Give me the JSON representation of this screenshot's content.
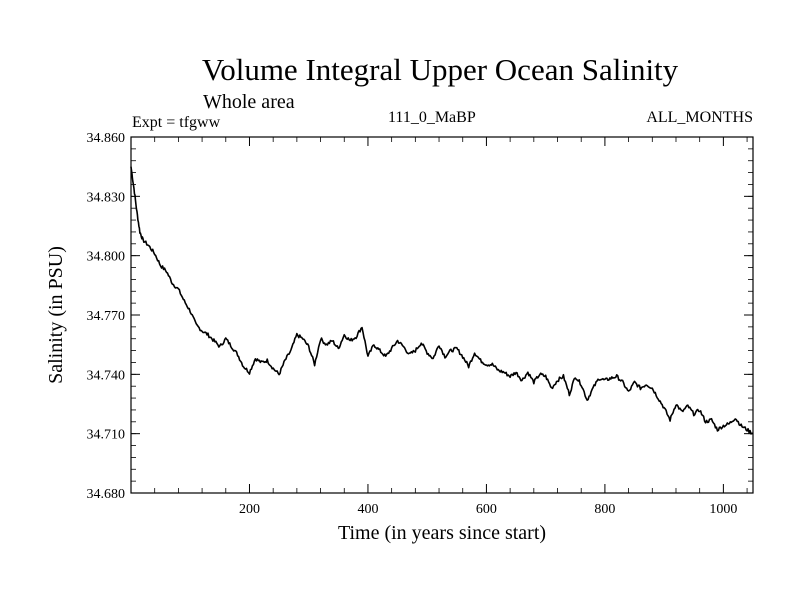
{
  "chart_data": {
    "type": "line",
    "title": "Volume Integral Upper Ocean Salinity",
    "subtitle": "Whole area",
    "annotations": {
      "experiment": "Expt = tfgww",
      "run": "111_0_MaBP",
      "period": "ALL_MONTHS"
    },
    "xlabel": "Time (in years since start)",
    "ylabel": "Salinity (in PSU)",
    "xlim": [
      0,
      1050
    ],
    "ylim": [
      34.68,
      34.86
    ],
    "x_ticks": [
      200,
      400,
      600,
      800,
      1000
    ],
    "x_tick_labels": [
      "200",
      "400",
      "600",
      "800",
      "1000"
    ],
    "y_ticks": [
      34.68,
      34.71,
      34.74,
      34.77,
      34.8,
      34.83,
      34.86
    ],
    "y_tick_labels": [
      "34.680",
      "34.710",
      "34.740",
      "34.770",
      "34.800",
      "34.830",
      "34.860"
    ],
    "grid": false,
    "series": [
      {
        "name": "Salinity",
        "color": "#000000",
        "x": [
          0,
          5,
          10,
          15,
          20,
          30,
          40,
          50,
          60,
          70,
          80,
          90,
          100,
          110,
          120,
          130,
          140,
          150,
          160,
          170,
          180,
          190,
          200,
          210,
          220,
          230,
          240,
          250,
          260,
          270,
          280,
          290,
          300,
          310,
          320,
          330,
          340,
          350,
          360,
          370,
          380,
          390,
          400,
          410,
          420,
          430,
          440,
          450,
          460,
          470,
          480,
          490,
          500,
          510,
          520,
          530,
          540,
          550,
          560,
          570,
          580,
          590,
          600,
          610,
          620,
          630,
          640,
          650,
          660,
          670,
          680,
          690,
          700,
          710,
          720,
          730,
          740,
          750,
          760,
          770,
          780,
          790,
          800,
          810,
          820,
          830,
          840,
          850,
          860,
          870,
          880,
          890,
          900,
          910,
          920,
          930,
          940,
          950,
          960,
          970,
          980,
          990,
          1000,
          1010,
          1020,
          1030,
          1040,
          1050
        ],
        "values": [
          34.845,
          34.834,
          34.822,
          34.812,
          34.808,
          34.805,
          34.801,
          34.795,
          34.792,
          34.786,
          34.783,
          34.777,
          34.772,
          34.765,
          34.762,
          34.76,
          34.757,
          34.754,
          34.758,
          34.754,
          34.75,
          34.744,
          34.741,
          34.748,
          34.746,
          34.747,
          34.743,
          34.74,
          34.747,
          34.752,
          34.76,
          34.758,
          34.754,
          34.745,
          34.758,
          34.755,
          34.757,
          34.753,
          34.76,
          34.757,
          34.759,
          34.764,
          34.749,
          34.755,
          34.752,
          34.749,
          34.753,
          34.757,
          34.754,
          34.75,
          34.752,
          34.756,
          34.751,
          34.748,
          34.755,
          34.749,
          34.752,
          34.753,
          34.749,
          34.744,
          34.751,
          34.747,
          34.745,
          34.745,
          34.742,
          34.741,
          34.739,
          34.741,
          34.737,
          34.741,
          34.736,
          34.74,
          34.739,
          34.733,
          34.737,
          34.739,
          34.73,
          34.739,
          34.735,
          34.727,
          34.733,
          34.738,
          34.737,
          34.738,
          34.739,
          34.736,
          34.731,
          34.736,
          34.733,
          34.735,
          34.733,
          34.728,
          34.723,
          34.717,
          34.725,
          34.721,
          34.724,
          34.72,
          34.722,
          34.716,
          34.717,
          34.712,
          34.714,
          34.715,
          34.718,
          34.714,
          34.712,
          34.71
        ]
      }
    ]
  }
}
